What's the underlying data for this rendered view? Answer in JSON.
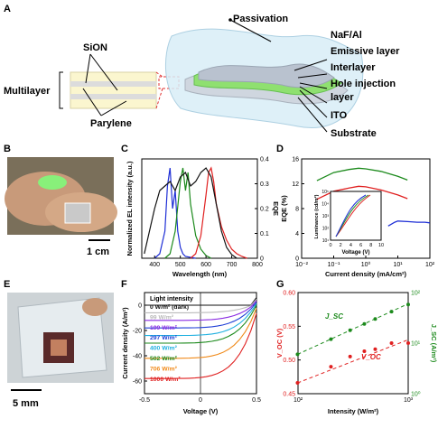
{
  "figure": {
    "panels": {
      "a": {
        "letter": "A",
        "left_labels": {
          "multilayer": "Multilayer",
          "sion": "SiON",
          "parylene": "Parylene"
        },
        "layer_labels": [
          "Passivation",
          "NaF/Al",
          "Emissive layer",
          "Interlayer",
          "Hole injection",
          "layer",
          "ITO",
          "Substrate"
        ]
      },
      "b": {
        "letter": "B",
        "scale_bar": "1 cm"
      },
      "c": {
        "letter": "C"
      },
      "d": {
        "letter": "D"
      },
      "e": {
        "letter": "E",
        "scale_bar": "5 mm"
      },
      "f": {
        "letter": "F"
      },
      "g": {
        "letter": "G"
      }
    },
    "colors": {
      "blue": "#1f2fd6",
      "green": "#1c8a1c",
      "red": "#e02020",
      "black": "#111111",
      "highlight_red": "#e03030",
      "layer_green": "#8fe070"
    }
  },
  "chart_data": [
    {
      "panel": "C",
      "type": "line",
      "xlabel": "Wavelength (nm)",
      "ylabel": "Normalized EL intensity (a.u.)",
      "ylabel_right": "EQE",
      "xlim": [
        350,
        800
      ],
      "ylim": [
        0,
        1.1
      ],
      "ylim_right": [
        0,
        0.4
      ],
      "xticks": [
        400,
        500,
        600,
        700,
        800
      ],
      "yticks_right": [
        "0",
        "0.1",
        "0.2",
        "0.3",
        "0.4"
      ],
      "series": [
        {
          "color": "#1f2fd6",
          "x": [
            400,
            420,
            440,
            450,
            460,
            470,
            480,
            490,
            500,
            510,
            520,
            540,
            560
          ],
          "y": [
            0,
            0.05,
            0.3,
            0.8,
            1.0,
            0.55,
            0.75,
            0.3,
            0.12,
            0.05,
            0.02,
            0.01,
            0
          ]
        },
        {
          "color": "#1c8a1c",
          "x": [
            440,
            460,
            480,
            500,
            510,
            520,
            530,
            540,
            560,
            580,
            600,
            620
          ],
          "y": [
            0,
            0.05,
            0.3,
            0.85,
            1.0,
            0.75,
            0.95,
            0.6,
            0.25,
            0.1,
            0.03,
            0
          ]
        },
        {
          "color": "#e02020",
          "x": [
            540,
            560,
            580,
            600,
            610,
            620,
            630,
            640,
            660,
            680,
            700,
            720,
            740,
            760
          ],
          "y": [
            0,
            0.05,
            0.25,
            0.7,
            0.95,
            1.0,
            0.85,
            0.6,
            0.35,
            0.2,
            0.1,
            0.05,
            0.02,
            0
          ]
        },
        {
          "color": "#111111",
          "x": [
            360,
            380,
            400,
            420,
            440,
            460,
            480,
            500,
            520,
            540,
            560,
            580,
            600,
            620,
            640,
            660,
            680,
            700,
            720
          ],
          "y": [
            0.05,
            0.3,
            0.55,
            0.75,
            0.8,
            0.85,
            0.75,
            0.9,
            0.95,
            0.8,
            0.85,
            0.95,
            1.0,
            0.9,
            0.6,
            0.3,
            0.12,
            0.04,
            0
          ]
        }
      ]
    },
    {
      "panel": "D",
      "type": "line",
      "xlabel": "Current density (mA/cm²)",
      "ylabel": "EQE (%)",
      "xscale": "log",
      "xlim": [
        0.01,
        100
      ],
      "ylim": [
        0,
        16
      ],
      "yticks": [
        0,
        4,
        8,
        12,
        16
      ],
      "xtick_labels": [
        "10⁻²",
        "10⁻¹",
        "10⁰",
        "10¹",
        "10²"
      ],
      "series": [
        {
          "color": "#1c8a1c",
          "x": [
            0.03,
            0.1,
            0.3,
            0.6,
            1,
            3,
            10,
            20
          ],
          "y": [
            12.5,
            13.8,
            14.3,
            14.5,
            14.4,
            14.0,
            13.2,
            12.6
          ]
        },
        {
          "color": "#e02020",
          "x": [
            0.03,
            0.1,
            0.3,
            0.6,
            1,
            3,
            10,
            20
          ],
          "y": [
            9.5,
            10.8,
            11.3,
            11.6,
            11.5,
            11.0,
            10.2,
            9.6
          ]
        },
        {
          "color": "#1f2fd6",
          "x": [
            5,
            8,
            10,
            20,
            40,
            70,
            100
          ],
          "y": [
            5.2,
            5.8,
            6.0,
            5.9,
            5.8,
            5.8,
            5.7
          ]
        }
      ],
      "inset": {
        "xlabel": "Voltage (V)",
        "ylabel": "Luminance (cd/m²)",
        "xticks": [
          0,
          2,
          4,
          6,
          8,
          10
        ],
        "ytick_labels": [
          "10¹",
          "10²",
          "10³",
          "10⁴",
          "10⁵"
        ]
      }
    },
    {
      "panel": "F",
      "type": "line",
      "xlabel": "Voltage (V)",
      "ylabel": "Current density (A/m²)",
      "xlim": [
        -0.5,
        0.5
      ],
      "ylim": [
        -70,
        10
      ],
      "xticks": [
        "-0.5",
        "0",
        "0.5"
      ],
      "yticks": [
        "0",
        "-20",
        "-40",
        "-60"
      ],
      "legend_title": "Light intensity",
      "series": [
        {
          "name": "0 W/m² (dark)",
          "color": "#111111",
          "jsc": 0
        },
        {
          "name": "99 W/m²",
          "color": "#bbbbbb",
          "jsc": -6
        },
        {
          "name": "199 W/m²",
          "color": "#8a2be2",
          "jsc": -12
        },
        {
          "name": "297 W/m²",
          "color": "#1f3fd6",
          "jsc": -18
        },
        {
          "name": "400 W/m²",
          "color": "#1fb0e0",
          "jsc": -24
        },
        {
          "name": "502 W/m²",
          "color": "#1c8a1c",
          "jsc": -30
        },
        {
          "name": "706 W/m²",
          "color": "#f08a1a",
          "jsc": -42
        },
        {
          "name": "1000 W/m²",
          "color": "#e02020",
          "jsc": -58
        }
      ]
    },
    {
      "panel": "G",
      "type": "scatter",
      "xlabel": "Intensity (W/m²)",
      "ylabel": "V_OC (V)",
      "ylabel_right": "J_SC (A/m²)",
      "xscale": "log",
      "xlim": [
        100,
        1000
      ],
      "ylim": [
        0.45,
        0.6
      ],
      "yticks": [
        "0.45",
        "0.50",
        "0.55",
        "0.60"
      ],
      "xtick_labels": [
        "10²",
        "10³"
      ],
      "ytick_labels_right": [
        "10⁰",
        "10¹",
        "10²"
      ],
      "series": [
        {
          "name": "V_OC",
          "color": "#e02020",
          "x": [
            99,
            199,
            297,
            400,
            502,
            706,
            1000
          ],
          "y": [
            0.466,
            0.49,
            0.505,
            0.513,
            0.516,
            0.525,
            0.525
          ]
        },
        {
          "name": "J_SC",
          "color": "#1c8a1c",
          "x": [
            99,
            199,
            297,
            400,
            502,
            706,
            1000
          ],
          "y_right": [
            6,
            12,
            18,
            24,
            30,
            42,
            58
          ]
        }
      ],
      "annotations": [
        "J_SC",
        "V_OC"
      ]
    }
  ]
}
